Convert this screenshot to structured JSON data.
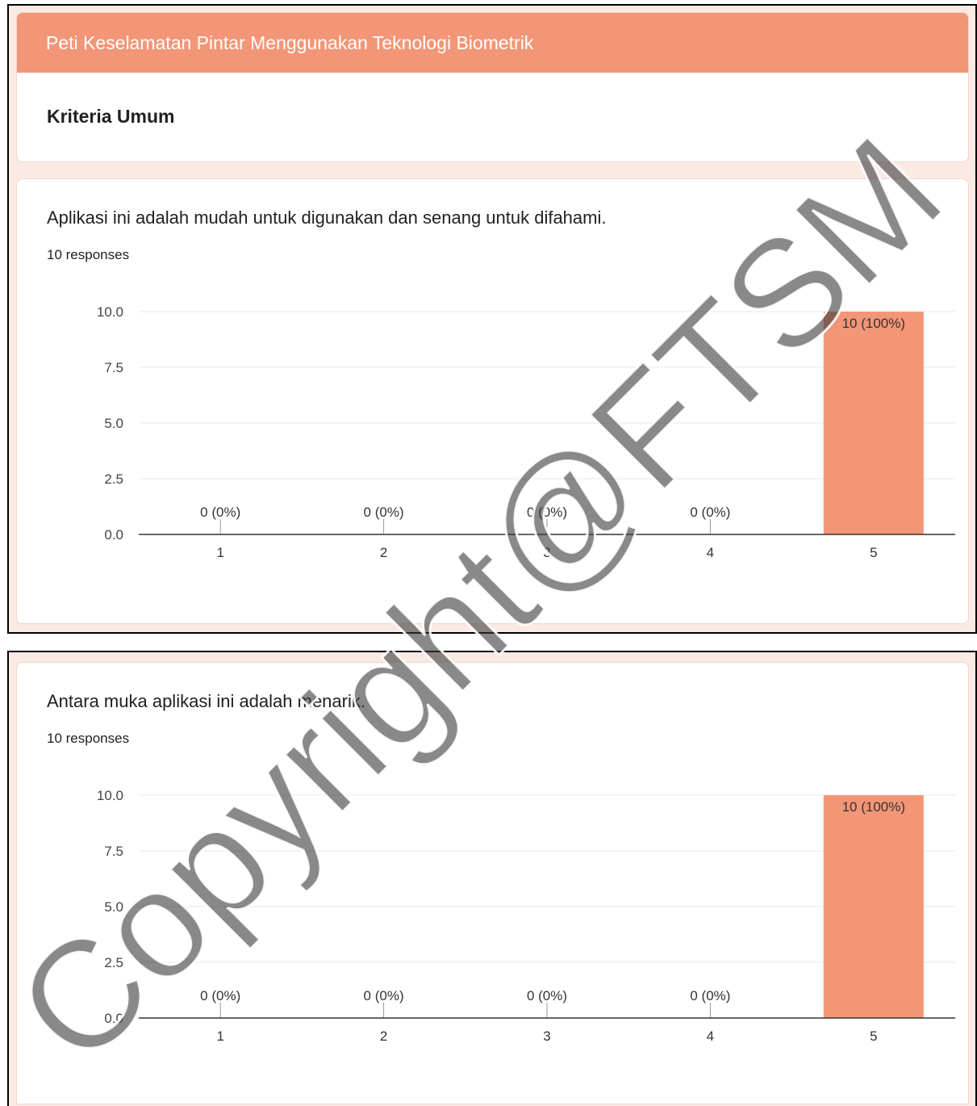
{
  "form": {
    "title": "Peti Keselamatan Pintar Menggunakan Teknologi Biometrik",
    "section_title": "Kriteria Umum"
  },
  "questions": [
    {
      "title": "Aplikasi ini adalah mudah untuk digunakan dan senang untuk difahami.",
      "responses_label": "10 responses"
    },
    {
      "title": "Antara muka aplikasi ini adalah menarik.",
      "responses_label": "10 responses"
    }
  ],
  "watermark": "Copyright@FTSM",
  "colors": {
    "bar": "#f39677",
    "header": "#f39677",
    "panel_bg": "#fbe9e3"
  },
  "chart_data": [
    {
      "type": "bar",
      "categories": [
        "1",
        "2",
        "3",
        "4",
        "5"
      ],
      "values": [
        0,
        0,
        0,
        0,
        10
      ],
      "data_labels": [
        "0 (0%)",
        "0 (0%)",
        "0 (0%)",
        "0 (0%)",
        "10 (100%)"
      ],
      "yticks": [
        "0.0",
        "2.5",
        "5.0",
        "7.5",
        "10.0"
      ],
      "ylim": [
        0,
        10
      ],
      "grid": true,
      "legend": "none"
    },
    {
      "type": "bar",
      "categories": [
        "1",
        "2",
        "3",
        "4",
        "5"
      ],
      "values": [
        0,
        0,
        0,
        0,
        10
      ],
      "data_labels": [
        "0 (0%)",
        "0 (0%)",
        "0 (0%)",
        "0 (0%)",
        "10 (100%)"
      ],
      "yticks": [
        "0.0",
        "2.5",
        "5.0",
        "7.5",
        "10.0"
      ],
      "ylim": [
        0,
        10
      ],
      "grid": true,
      "legend": "none"
    }
  ]
}
